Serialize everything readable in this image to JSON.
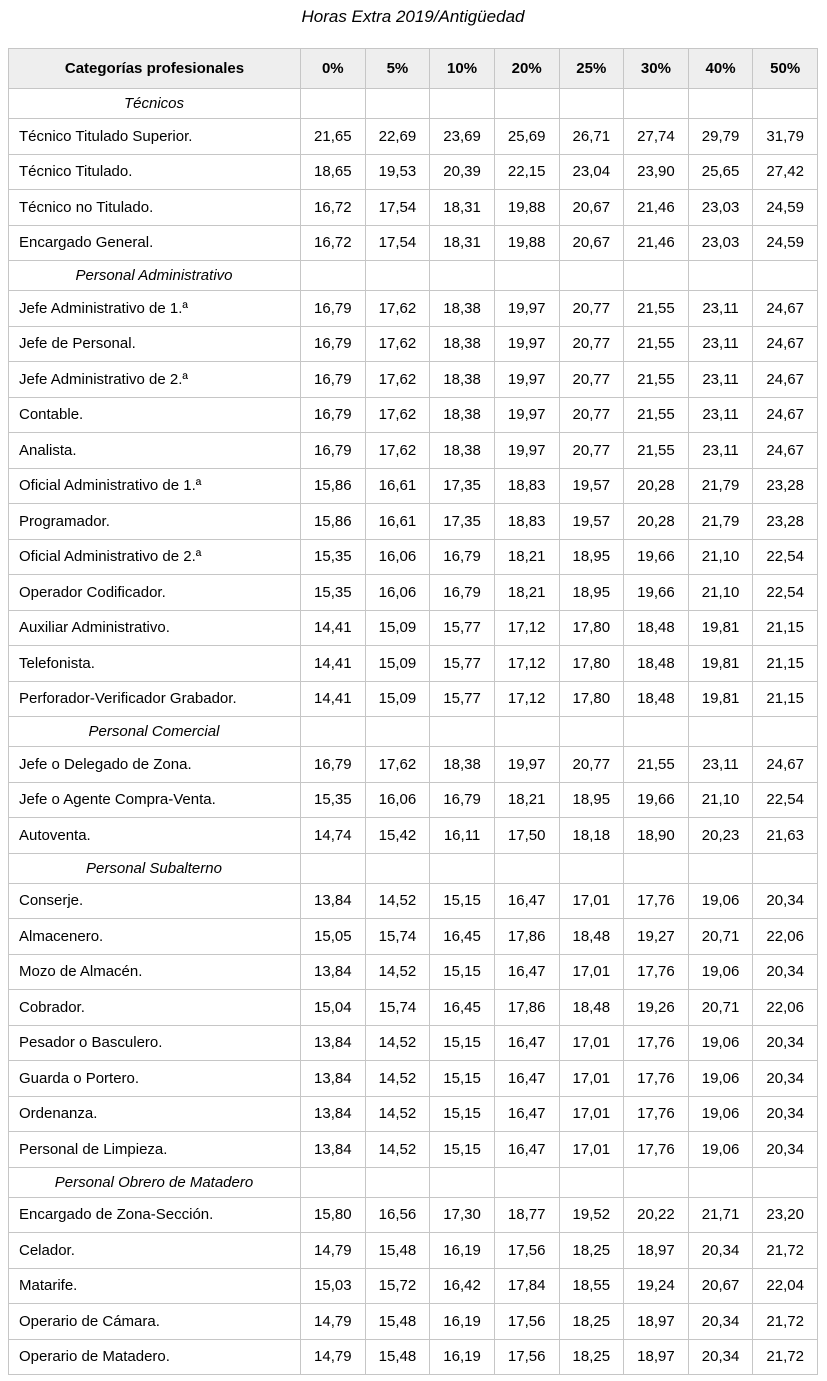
{
  "title": "Horas Extra 2019/Antigüedad",
  "colors": {
    "header_bg": "#eeeeee",
    "border": "#c6c6c6",
    "text": "#000000"
  },
  "table": {
    "columns": [
      "Categorías profesionales",
      "0%",
      "5%",
      "10%",
      "20%",
      "25%",
      "30%",
      "40%",
      "50%"
    ],
    "rows": [
      {
        "type": "section",
        "label": "Técnicos"
      },
      {
        "type": "data",
        "label": "Técnico Titulado Superior.",
        "values": [
          "21,65",
          "22,69",
          "23,69",
          "25,69",
          "26,71",
          "27,74",
          "29,79",
          "31,79"
        ]
      },
      {
        "type": "data",
        "label": "Técnico Titulado.",
        "values": [
          "18,65",
          "19,53",
          "20,39",
          "22,15",
          "23,04",
          "23,90",
          "25,65",
          "27,42"
        ]
      },
      {
        "type": "data",
        "label": "Técnico no Titulado.",
        "values": [
          "16,72",
          "17,54",
          "18,31",
          "19,88",
          "20,67",
          "21,46",
          "23,03",
          "24,59"
        ]
      },
      {
        "type": "data",
        "label": "Encargado General.",
        "values": [
          "16,72",
          "17,54",
          "18,31",
          "19,88",
          "20,67",
          "21,46",
          "23,03",
          "24,59"
        ]
      },
      {
        "type": "section",
        "label": "Personal Administrativo"
      },
      {
        "type": "data",
        "label": "Jefe Administrativo de 1.ª",
        "values": [
          "16,79",
          "17,62",
          "18,38",
          "19,97",
          "20,77",
          "21,55",
          "23,11",
          "24,67"
        ]
      },
      {
        "type": "data",
        "label": "Jefe de Personal.",
        "values": [
          "16,79",
          "17,62",
          "18,38",
          "19,97",
          "20,77",
          "21,55",
          "23,11",
          "24,67"
        ]
      },
      {
        "type": "data",
        "label": "Jefe Administrativo de 2.ª",
        "values": [
          "16,79",
          "17,62",
          "18,38",
          "19,97",
          "20,77",
          "21,55",
          "23,11",
          "24,67"
        ]
      },
      {
        "type": "data",
        "label": "Contable.",
        "values": [
          "16,79",
          "17,62",
          "18,38",
          "19,97",
          "20,77",
          "21,55",
          "23,11",
          "24,67"
        ]
      },
      {
        "type": "data",
        "label": "Analista.",
        "values": [
          "16,79",
          "17,62",
          "18,38",
          "19,97",
          "20,77",
          "21,55",
          "23,11",
          "24,67"
        ]
      },
      {
        "type": "data",
        "label": "Oficial Administrativo de 1.ª",
        "values": [
          "15,86",
          "16,61",
          "17,35",
          "18,83",
          "19,57",
          "20,28",
          "21,79",
          "23,28"
        ]
      },
      {
        "type": "data",
        "label": "Programador.",
        "values": [
          "15,86",
          "16,61",
          "17,35",
          "18,83",
          "19,57",
          "20,28",
          "21,79",
          "23,28"
        ]
      },
      {
        "type": "data",
        "label": "Oficial Administrativo de 2.ª",
        "values": [
          "15,35",
          "16,06",
          "16,79",
          "18,21",
          "18,95",
          "19,66",
          "21,10",
          "22,54"
        ]
      },
      {
        "type": "data",
        "label": "Operador Codificador.",
        "values": [
          "15,35",
          "16,06",
          "16,79",
          "18,21",
          "18,95",
          "19,66",
          "21,10",
          "22,54"
        ]
      },
      {
        "type": "data",
        "label": "Auxiliar Administrativo.",
        "values": [
          "14,41",
          "15,09",
          "15,77",
          "17,12",
          "17,80",
          "18,48",
          "19,81",
          "21,15"
        ]
      },
      {
        "type": "data",
        "label": "Telefonista.",
        "values": [
          "14,41",
          "15,09",
          "15,77",
          "17,12",
          "17,80",
          "18,48",
          "19,81",
          "21,15"
        ]
      },
      {
        "type": "data",
        "label": "Perforador-Verificador Grabador.",
        "values": [
          "14,41",
          "15,09",
          "15,77",
          "17,12",
          "17,80",
          "18,48",
          "19,81",
          "21,15"
        ]
      },
      {
        "type": "section",
        "label": "Personal Comercial"
      },
      {
        "type": "data",
        "label": "Jefe o Delegado de Zona.",
        "values": [
          "16,79",
          "17,62",
          "18,38",
          "19,97",
          "20,77",
          "21,55",
          "23,11",
          "24,67"
        ]
      },
      {
        "type": "data",
        "label": "Jefe o Agente Compra-Venta.",
        "values": [
          "15,35",
          "16,06",
          "16,79",
          "18,21",
          "18,95",
          "19,66",
          "21,10",
          "22,54"
        ]
      },
      {
        "type": "data",
        "label": "Autoventa.",
        "values": [
          "14,74",
          "15,42",
          "16,11",
          "17,50",
          "18,18",
          "18,90",
          "20,23",
          "21,63"
        ]
      },
      {
        "type": "section",
        "label": "Personal Subalterno"
      },
      {
        "type": "data",
        "label": "Conserje.",
        "values": [
          "13,84",
          "14,52",
          "15,15",
          "16,47",
          "17,01",
          "17,76",
          "19,06",
          "20,34"
        ]
      },
      {
        "type": "data",
        "label": "Almacenero.",
        "values": [
          "15,05",
          "15,74",
          "16,45",
          "17,86",
          "18,48",
          "19,27",
          "20,71",
          "22,06"
        ]
      },
      {
        "type": "data",
        "label": "Mozo de Almacén.",
        "values": [
          "13,84",
          "14,52",
          "15,15",
          "16,47",
          "17,01",
          "17,76",
          "19,06",
          "20,34"
        ]
      },
      {
        "type": "data",
        "label": "Cobrador.",
        "values": [
          "15,04",
          "15,74",
          "16,45",
          "17,86",
          "18,48",
          "19,26",
          "20,71",
          "22,06"
        ]
      },
      {
        "type": "data",
        "label": "Pesador o Basculero.",
        "values": [
          "13,84",
          "14,52",
          "15,15",
          "16,47",
          "17,01",
          "17,76",
          "19,06",
          "20,34"
        ]
      },
      {
        "type": "data",
        "label": "Guarda o Portero.",
        "values": [
          "13,84",
          "14,52",
          "15,15",
          "16,47",
          "17,01",
          "17,76",
          "19,06",
          "20,34"
        ]
      },
      {
        "type": "data",
        "label": "Ordenanza.",
        "values": [
          "13,84",
          "14,52",
          "15,15",
          "16,47",
          "17,01",
          "17,76",
          "19,06",
          "20,34"
        ]
      },
      {
        "type": "data",
        "label": "Personal de Limpieza.",
        "values": [
          "13,84",
          "14,52",
          "15,15",
          "16,47",
          "17,01",
          "17,76",
          "19,06",
          "20,34"
        ]
      },
      {
        "type": "section",
        "label": "Personal Obrero de Matadero"
      },
      {
        "type": "data",
        "label": "Encargado de Zona-Sección.",
        "values": [
          "15,80",
          "16,56",
          "17,30",
          "18,77",
          "19,52",
          "20,22",
          "21,71",
          "23,20"
        ]
      },
      {
        "type": "data",
        "label": "Celador.",
        "values": [
          "14,79",
          "15,48",
          "16,19",
          "17,56",
          "18,25",
          "18,97",
          "20,34",
          "21,72"
        ]
      },
      {
        "type": "data",
        "label": "Matarife.",
        "values": [
          "15,03",
          "15,72",
          "16,42",
          "17,84",
          "18,55",
          "19,24",
          "20,67",
          "22,04"
        ]
      },
      {
        "type": "data",
        "label": "Operario de Cámara.",
        "values": [
          "14,79",
          "15,48",
          "16,19",
          "17,56",
          "18,25",
          "18,97",
          "20,34",
          "21,72"
        ]
      },
      {
        "type": "data",
        "label": "Operario de Matadero.",
        "values": [
          "14,79",
          "15,48",
          "16,19",
          "17,56",
          "18,25",
          "18,97",
          "20,34",
          "21,72"
        ]
      }
    ]
  }
}
